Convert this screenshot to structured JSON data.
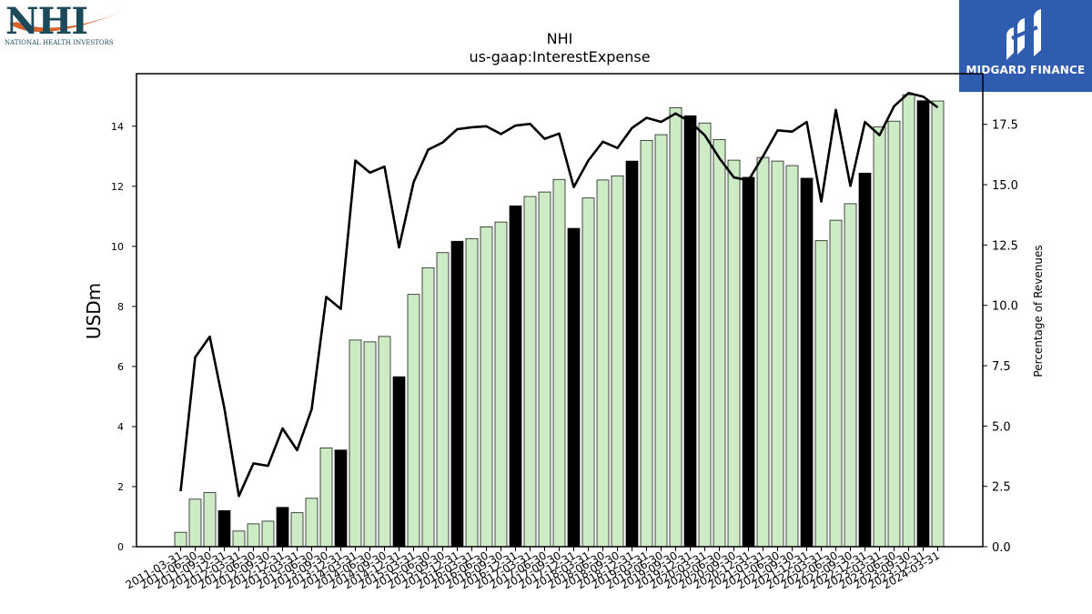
{
  "logos": {
    "left_main": "NHI",
    "left_sub": "NATIONAL HEALTH INVESTORS",
    "right_text": "MIDGARD FINANCE",
    "colors": {
      "nhi_navy": "#1c4a5a",
      "nhi_orange": "#d9622b",
      "midgard_blue": "#2f5cae"
    }
  },
  "chart_data": {
    "type": "bar",
    "title": "NHI",
    "subtitle": "us-gaap:InterestExpense",
    "ylabel": "USDm",
    "y2label": "Percentage of Revenues",
    "ylim": [
      0,
      15.75
    ],
    "y2lim": [
      0,
      19.6
    ],
    "yticks": [
      "0",
      "2",
      "4",
      "6",
      "8",
      "10",
      "12",
      "14"
    ],
    "y2ticks": [
      "0.0",
      "2.5",
      "5.0",
      "7.5",
      "10.0",
      "12.5",
      "15.0",
      "17.5"
    ],
    "grid": false,
    "colors": {
      "bar_regular": "#cdebc5",
      "bar_q4": "#000000",
      "line": "#000000"
    },
    "categories": [
      "2011-03-31",
      "2011-06-30",
      "2011-09-30",
      "2011-12-31",
      "2012-03-31",
      "2012-06-30",
      "2012-09-30",
      "2012-12-31",
      "2013-03-31",
      "2013-06-30",
      "2013-09-30",
      "2013-12-31",
      "2014-03-31",
      "2014-06-30",
      "2014-09-30",
      "2014-12-31",
      "2015-03-31",
      "2015-06-30",
      "2015-09-30",
      "2015-12-31",
      "2016-03-31",
      "2016-06-30",
      "2016-09-30",
      "2016-12-31",
      "2017-03-31",
      "2017-06-30",
      "2017-09-30",
      "2017-12-31",
      "2018-03-31",
      "2018-06-30",
      "2018-09-30",
      "2018-12-31",
      "2019-03-31",
      "2019-06-30",
      "2019-09-30",
      "2019-12-31",
      "2020-03-31",
      "2020-06-30",
      "2020-09-30",
      "2020-12-31",
      "2021-03-31",
      "2021-06-30",
      "2021-09-30",
      "2021-12-31",
      "2022-03-31",
      "2022-06-30",
      "2022-09-30",
      "2022-12-31",
      "2023-03-31",
      "2023-06-30",
      "2023-09-30",
      "2023-12-31",
      "2024-03-31"
    ],
    "series": [
      {
        "type": "bar",
        "axis": "left",
        "values": [
          0.48,
          1.58,
          1.8,
          1.2,
          0.52,
          0.76,
          0.85,
          1.31,
          1.13,
          1.61,
          3.29,
          3.22,
          6.88,
          6.82,
          7.0,
          5.66,
          8.4,
          9.29,
          9.79,
          10.17,
          10.26,
          10.65,
          10.81,
          11.35,
          11.66,
          11.81,
          12.23,
          10.6,
          11.61,
          12.21,
          12.35,
          12.84,
          13.53,
          13.72,
          14.62,
          14.35,
          14.11,
          13.56,
          12.87,
          12.3,
          12.96,
          12.84,
          12.69,
          12.27,
          10.19,
          10.87,
          11.42,
          12.44,
          13.98,
          14.17,
          15.05,
          14.85,
          14.84
        ],
        "q4_flags": [
          0,
          0,
          0,
          1,
          0,
          0,
          0,
          1,
          0,
          0,
          0,
          1,
          0,
          0,
          0,
          1,
          0,
          0,
          0,
          1,
          0,
          0,
          0,
          1,
          0,
          0,
          0,
          1,
          0,
          0,
          0,
          1,
          0,
          0,
          0,
          1,
          0,
          0,
          0,
          1,
          0,
          0,
          0,
          1,
          0,
          0,
          0,
          1,
          0,
          0,
          0,
          1,
          0
        ]
      },
      {
        "type": "line",
        "axis": "right",
        "values": [
          2.3,
          7.85,
          8.7,
          5.75,
          2.1,
          3.45,
          3.35,
          4.9,
          4.0,
          5.7,
          10.35,
          9.85,
          16.0,
          15.5,
          15.75,
          12.4,
          15.1,
          16.45,
          16.75,
          17.3,
          17.38,
          17.42,
          17.1,
          17.45,
          17.52,
          16.9,
          17.12,
          14.9,
          16.0,
          16.78,
          16.52,
          17.35,
          17.77,
          17.6,
          17.95,
          17.6,
          17.05,
          16.1,
          15.3,
          15.18,
          16.18,
          17.25,
          17.2,
          17.6,
          14.3,
          18.1,
          14.95,
          17.6,
          17.05,
          18.25,
          18.8,
          18.65,
          18.2
        ]
      }
    ]
  }
}
